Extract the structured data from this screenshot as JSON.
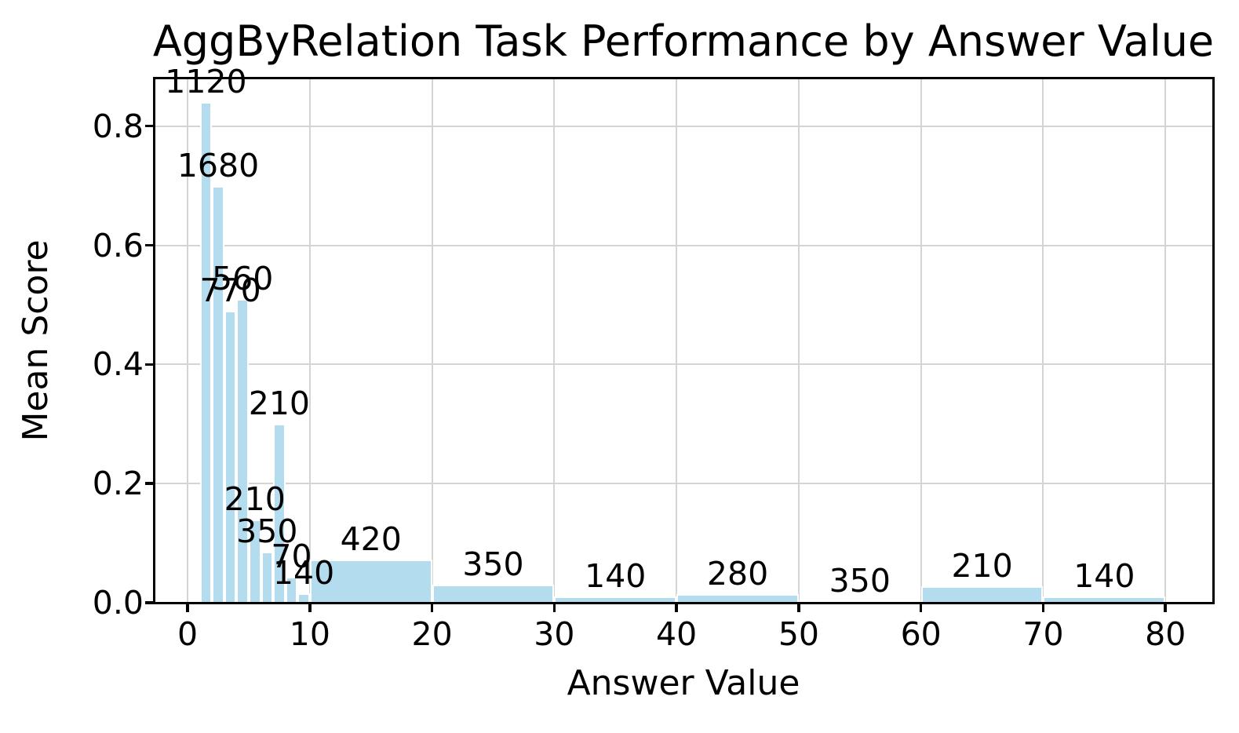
{
  "figure": {
    "title": "AggByRelation Task Performance by Answer Value",
    "xlabel": "Answer Value",
    "ylabel": "Mean Score"
  },
  "chart_data": {
    "type": "bar",
    "title": "AggByRelation Task Performance by Answer Value",
    "xlabel": "Answer Value",
    "ylabel": "Mean Score",
    "xlim": [
      -2.7,
      83.9
    ],
    "ylim": [
      0,
      0.88
    ],
    "xticks": [
      0,
      10,
      20,
      30,
      40,
      50,
      60,
      70,
      80
    ],
    "yticks": [
      0.0,
      0.2,
      0.4,
      0.6,
      0.8
    ],
    "grid": true,
    "legend": "none",
    "colors": {
      "bar_fill": "#b3ddef",
      "bar_edge": "#ffffff",
      "grid": "#d4d4d4",
      "spine": "#000000",
      "text": "#000000",
      "background": "#ffffff"
    },
    "bars": [
      {
        "x_start": 1,
        "x_end": 2,
        "mean_score": 0.84,
        "count": 1120
      },
      {
        "x_start": 2,
        "x_end": 3,
        "mean_score": 0.7,
        "count": 1680
      },
      {
        "x_start": 3,
        "x_end": 4,
        "mean_score": 0.49,
        "count": 770
      },
      {
        "x_start": 4,
        "x_end": 5,
        "mean_score": 0.51,
        "count": 560
      },
      {
        "x_start": 5,
        "x_end": 6,
        "mean_score": 0.14,
        "count": 210
      },
      {
        "x_start": 6,
        "x_end": 7,
        "mean_score": 0.086,
        "count": 350
      },
      {
        "x_start": 7,
        "x_end": 8,
        "mean_score": 0.3,
        "count": 210
      },
      {
        "x_start": 8,
        "x_end": 9,
        "mean_score": 0.044,
        "count": 70
      },
      {
        "x_start": 9,
        "x_end": 10,
        "mean_score": 0.016,
        "count": 140
      },
      {
        "x_start": 10,
        "x_end": 20,
        "mean_score": 0.072,
        "count": 420
      },
      {
        "x_start": 20,
        "x_end": 30,
        "mean_score": 0.03,
        "count": 350
      },
      {
        "x_start": 30,
        "x_end": 40,
        "mean_score": 0.011,
        "count": 140
      },
      {
        "x_start": 40,
        "x_end": 50,
        "mean_score": 0.015,
        "count": 280
      },
      {
        "x_start": 50,
        "x_end": 60,
        "mean_score": 0.002,
        "count": 350
      },
      {
        "x_start": 60,
        "x_end": 70,
        "mean_score": 0.028,
        "count": 210
      },
      {
        "x_start": 70,
        "x_end": 80,
        "mean_score": 0.01,
        "count": 140
      }
    ]
  }
}
